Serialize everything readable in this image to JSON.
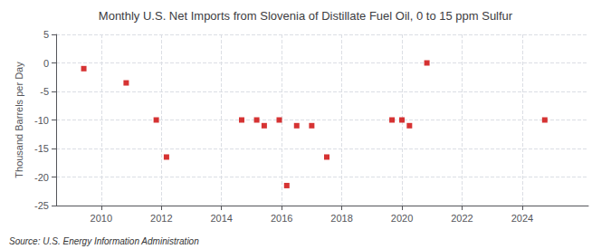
{
  "chart_data": {
    "type": "scatter",
    "title": "Monthly U.S. Net Imports from Slovenia of Distillate Fuel Oil, 0 to 15 ppm Sulfur",
    "ylabel": "Thousand Barrels per Day",
    "annotation": "Source: U.S. Energy Information Administration",
    "color": "#cc0000",
    "marker": "square",
    "x": [
      2009.42,
      2010.83,
      2011.83,
      2012.17,
      2014.67,
      2015.17,
      2015.42,
      2015.92,
      2016.17,
      2016.5,
      2017.0,
      2017.5,
      2019.67,
      2020.0,
      2020.25,
      2020.83,
      2024.75
    ],
    "values": [
      -1.0,
      -3.5,
      -10.0,
      -16.5,
      -10.0,
      -10.0,
      -11.0,
      -10.0,
      -21.5,
      -11.0,
      -11.0,
      -16.5,
      -10.0,
      -10.0,
      -11.0,
      0.0,
      -10.0
    ],
    "xlim": [
      2008.5,
      2026.2
    ],
    "xticks": [
      2010,
      2012,
      2014,
      2016,
      2018,
      2020,
      2022,
      2024
    ],
    "ylim": [
      -25,
      5
    ],
    "yticks": [
      5,
      0,
      -5,
      -10,
      -15,
      -20,
      -25
    ],
    "grid": true
  }
}
